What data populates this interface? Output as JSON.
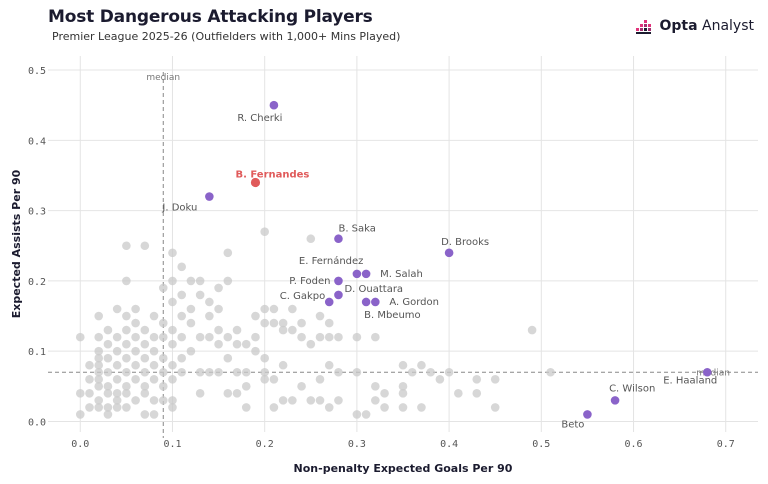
{
  "header": {
    "title": "Most Dangerous Attacking Players",
    "subtitle": "Premier League 2025-26 (Outfielders with 1,000+ Mins Played)",
    "brand_bold": "Opta",
    "brand_light": " Analyst"
  },
  "colors": {
    "highlight": "#e05a5a",
    "named": "#8a63c9",
    "background_points": "#c9c9c9",
    "grid": "#e4e4e4"
  },
  "chart_data": {
    "type": "scatter",
    "xlabel": "Non-penalty Expected Goals Per 90",
    "ylabel": "Expected Assists Per 90",
    "xlim": [
      -0.035,
      0.735
    ],
    "ylim": [
      -0.015,
      0.52
    ],
    "xticks": [
      0.0,
      0.1,
      0.2,
      0.3,
      0.4,
      0.5,
      0.6,
      0.7
    ],
    "xtick_labels": [
      "0.0",
      "0.1",
      "0.2",
      "0.3",
      "0.4",
      "0.5",
      "0.6",
      "0.7"
    ],
    "yticks": [
      0.0,
      0.1,
      0.2,
      0.3,
      0.4,
      0.5
    ],
    "ytick_labels": [
      "0.0",
      "0.1",
      "0.2",
      "0.3",
      "0.4",
      "0.5"
    ],
    "grid": true,
    "median_x": 0.09,
    "median_y": 0.07,
    "median_label": "median",
    "highlighted": [
      {
        "name": "B. Fernandes",
        "x": 0.19,
        "y": 0.34
      }
    ],
    "named_players": [
      {
        "name": "R. Cherki",
        "x": 0.21,
        "y": 0.45
      },
      {
        "name": "J. Doku",
        "x": 0.14,
        "y": 0.32
      },
      {
        "name": "B. Saka",
        "x": 0.28,
        "y": 0.26
      },
      {
        "name": "D. Brooks",
        "x": 0.4,
        "y": 0.24
      },
      {
        "name": "E. Fernández",
        "x": 0.3,
        "y": 0.21
      },
      {
        "name": "M. Salah",
        "x": 0.31,
        "y": 0.21
      },
      {
        "name": "P. Foden",
        "x": 0.28,
        "y": 0.2
      },
      {
        "name": "D. Ouattara",
        "x": 0.28,
        "y": 0.18
      },
      {
        "name": "C. Gakpo",
        "x": 0.27,
        "y": 0.17
      },
      {
        "name": "A. Gordon",
        "x": 0.32,
        "y": 0.17
      },
      {
        "name": "B. Mbeumo",
        "x": 0.31,
        "y": 0.17
      },
      {
        "name": "E. Haaland",
        "x": 0.68,
        "y": 0.07
      },
      {
        "name": "C. Wilson",
        "x": 0.58,
        "y": 0.03
      },
      {
        "name": "Beto",
        "x": 0.55,
        "y": 0.01
      }
    ],
    "other_players": [
      [
        0.0,
        0.12
      ],
      [
        0.0,
        0.04
      ],
      [
        0.0,
        0.01
      ],
      [
        0.01,
        0.08
      ],
      [
        0.01,
        0.06
      ],
      [
        0.01,
        0.04
      ],
      [
        0.01,
        0.02
      ],
      [
        0.02,
        0.15
      ],
      [
        0.02,
        0.12
      ],
      [
        0.02,
        0.1
      ],
      [
        0.02,
        0.09
      ],
      [
        0.02,
        0.08
      ],
      [
        0.02,
        0.07
      ],
      [
        0.02,
        0.06
      ],
      [
        0.02,
        0.05
      ],
      [
        0.02,
        0.03
      ],
      [
        0.02,
        0.02
      ],
      [
        0.03,
        0.13
      ],
      [
        0.03,
        0.11
      ],
      [
        0.03,
        0.09
      ],
      [
        0.03,
        0.07
      ],
      [
        0.03,
        0.05
      ],
      [
        0.03,
        0.04
      ],
      [
        0.03,
        0.02
      ],
      [
        0.03,
        0.01
      ],
      [
        0.04,
        0.16
      ],
      [
        0.04,
        0.12
      ],
      [
        0.04,
        0.1
      ],
      [
        0.04,
        0.08
      ],
      [
        0.04,
        0.06
      ],
      [
        0.04,
        0.04
      ],
      [
        0.04,
        0.03
      ],
      [
        0.04,
        0.02
      ],
      [
        0.05,
        0.25
      ],
      [
        0.05,
        0.2
      ],
      [
        0.05,
        0.15
      ],
      [
        0.05,
        0.13
      ],
      [
        0.05,
        0.11
      ],
      [
        0.05,
        0.09
      ],
      [
        0.05,
        0.07
      ],
      [
        0.05,
        0.05
      ],
      [
        0.05,
        0.04
      ],
      [
        0.05,
        0.02
      ],
      [
        0.06,
        0.16
      ],
      [
        0.06,
        0.14
      ],
      [
        0.06,
        0.12
      ],
      [
        0.06,
        0.1
      ],
      [
        0.06,
        0.08
      ],
      [
        0.06,
        0.06
      ],
      [
        0.06,
        0.03
      ],
      [
        0.07,
        0.25
      ],
      [
        0.07,
        0.13
      ],
      [
        0.07,
        0.11
      ],
      [
        0.07,
        0.09
      ],
      [
        0.07,
        0.07
      ],
      [
        0.07,
        0.05
      ],
      [
        0.07,
        0.04
      ],
      [
        0.07,
        0.01
      ],
      [
        0.08,
        0.15
      ],
      [
        0.08,
        0.12
      ],
      [
        0.08,
        0.1
      ],
      [
        0.08,
        0.08
      ],
      [
        0.08,
        0.06
      ],
      [
        0.08,
        0.03
      ],
      [
        0.08,
        0.01
      ],
      [
        0.09,
        0.19
      ],
      [
        0.09,
        0.14
      ],
      [
        0.09,
        0.12
      ],
      [
        0.09,
        0.09
      ],
      [
        0.09,
        0.07
      ],
      [
        0.09,
        0.05
      ],
      [
        0.09,
        0.03
      ],
      [
        0.1,
        0.24
      ],
      [
        0.1,
        0.2
      ],
      [
        0.1,
        0.17
      ],
      [
        0.1,
        0.13
      ],
      [
        0.1,
        0.11
      ],
      [
        0.1,
        0.08
      ],
      [
        0.1,
        0.06
      ],
      [
        0.1,
        0.03
      ],
      [
        0.1,
        0.02
      ],
      [
        0.11,
        0.22
      ],
      [
        0.11,
        0.18
      ],
      [
        0.11,
        0.15
      ],
      [
        0.11,
        0.12
      ],
      [
        0.11,
        0.09
      ],
      [
        0.11,
        0.07
      ],
      [
        0.12,
        0.2
      ],
      [
        0.12,
        0.16
      ],
      [
        0.12,
        0.14
      ],
      [
        0.12,
        0.1
      ],
      [
        0.13,
        0.2
      ],
      [
        0.13,
        0.18
      ],
      [
        0.13,
        0.12
      ],
      [
        0.13,
        0.07
      ],
      [
        0.13,
        0.04
      ],
      [
        0.14,
        0.17
      ],
      [
        0.14,
        0.15
      ],
      [
        0.14,
        0.12
      ],
      [
        0.14,
        0.07
      ],
      [
        0.15,
        0.19
      ],
      [
        0.15,
        0.16
      ],
      [
        0.15,
        0.13
      ],
      [
        0.15,
        0.11
      ],
      [
        0.15,
        0.07
      ],
      [
        0.16,
        0.24
      ],
      [
        0.16,
        0.2
      ],
      [
        0.16,
        0.12
      ],
      [
        0.16,
        0.09
      ],
      [
        0.16,
        0.04
      ],
      [
        0.17,
        0.13
      ],
      [
        0.17,
        0.11
      ],
      [
        0.17,
        0.07
      ],
      [
        0.17,
        0.04
      ],
      [
        0.18,
        0.11
      ],
      [
        0.18,
        0.07
      ],
      [
        0.18,
        0.05
      ],
      [
        0.18,
        0.02
      ],
      [
        0.19,
        0.15
      ],
      [
        0.19,
        0.12
      ],
      [
        0.19,
        0.1
      ],
      [
        0.2,
        0.27
      ],
      [
        0.2,
        0.16
      ],
      [
        0.2,
        0.14
      ],
      [
        0.2,
        0.09
      ],
      [
        0.2,
        0.07
      ],
      [
        0.2,
        0.06
      ],
      [
        0.21,
        0.16
      ],
      [
        0.21,
        0.14
      ],
      [
        0.21,
        0.06
      ],
      [
        0.21,
        0.02
      ],
      [
        0.22,
        0.14
      ],
      [
        0.22,
        0.13
      ],
      [
        0.22,
        0.08
      ],
      [
        0.22,
        0.03
      ],
      [
        0.23,
        0.16
      ],
      [
        0.23,
        0.13
      ],
      [
        0.23,
        0.03
      ],
      [
        0.24,
        0.14
      ],
      [
        0.24,
        0.12
      ],
      [
        0.24,
        0.05
      ],
      [
        0.25,
        0.26
      ],
      [
        0.25,
        0.11
      ],
      [
        0.25,
        0.03
      ],
      [
        0.26,
        0.15
      ],
      [
        0.26,
        0.12
      ],
      [
        0.26,
        0.06
      ],
      [
        0.26,
        0.03
      ],
      [
        0.27,
        0.14
      ],
      [
        0.27,
        0.12
      ],
      [
        0.27,
        0.08
      ],
      [
        0.27,
        0.02
      ],
      [
        0.28,
        0.12
      ],
      [
        0.28,
        0.07
      ],
      [
        0.28,
        0.03
      ],
      [
        0.3,
        0.12
      ],
      [
        0.3,
        0.07
      ],
      [
        0.3,
        0.01
      ],
      [
        0.31,
        0.01
      ],
      [
        0.32,
        0.12
      ],
      [
        0.32,
        0.05
      ],
      [
        0.32,
        0.03
      ],
      [
        0.33,
        0.04
      ],
      [
        0.33,
        0.02
      ],
      [
        0.35,
        0.08
      ],
      [
        0.35,
        0.05
      ],
      [
        0.35,
        0.04
      ],
      [
        0.35,
        0.02
      ],
      [
        0.36,
        0.07
      ],
      [
        0.37,
        0.08
      ],
      [
        0.37,
        0.02
      ],
      [
        0.38,
        0.07
      ],
      [
        0.39,
        0.06
      ],
      [
        0.4,
        0.07
      ],
      [
        0.41,
        0.04
      ],
      [
        0.43,
        0.06
      ],
      [
        0.43,
        0.04
      ],
      [
        0.45,
        0.06
      ],
      [
        0.45,
        0.02
      ],
      [
        0.49,
        0.13
      ],
      [
        0.51,
        0.07
      ]
    ]
  }
}
